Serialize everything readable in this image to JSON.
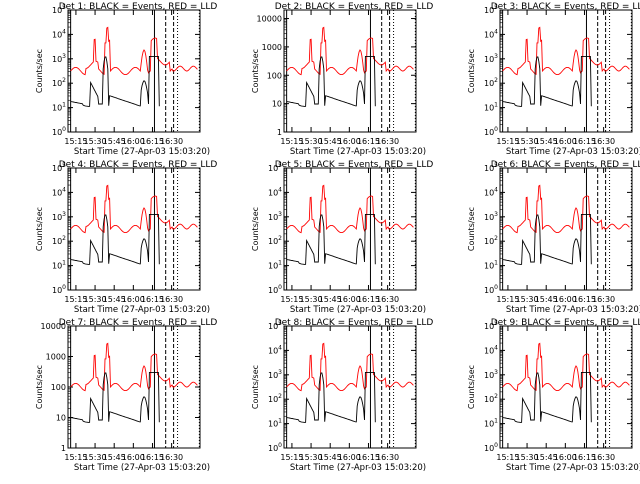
{
  "figure": {
    "xlabel": "Start Time (27-Apr-03 15:03:20)",
    "ylabel": "Counts/sec",
    "x_ticks": [
      "15:15",
      "15:30",
      "15:45",
      "16:00",
      "16:15",
      "16:30"
    ],
    "series_colors": {
      "events": "#000000",
      "lld": "#ff0000"
    }
  },
  "chart_data": [
    {
      "type": "line",
      "title": "Det 1: BLACK = Events, RED = LLD",
      "xlabel": "Start Time (27-Apr-03 15:03:20)",
      "ylabel": "Counts/sec",
      "log_y": true,
      "ylim": [
        1,
        100000
      ],
      "y_ticks": [
        "1",
        "10",
        "100",
        "1000",
        "10000",
        "100000"
      ],
      "y_ticks_style": "exp"
    },
    {
      "type": "line",
      "title": "Det 2: BLACK = Events, RED = LLD",
      "xlabel": "Start Time (27-Apr-03 15:03:20)",
      "ylabel": "Counts/sec",
      "log_y": true,
      "ylim": [
        1,
        20000
      ],
      "y_ticks": [
        "1",
        "10",
        "100",
        "1000",
        "10000"
      ],
      "y_ticks_style": "num"
    },
    {
      "type": "line",
      "title": "Det 3: BLACK = Events, RED = LLD",
      "xlabel": "Start Time (27-Apr-03 15:03:20)",
      "ylabel": "Counts/sec",
      "log_y": true,
      "ylim": [
        1,
        100000
      ],
      "y_ticks": [
        "1",
        "10",
        "100",
        "1000",
        "10000",
        "100000"
      ],
      "y_ticks_style": "exp"
    },
    {
      "type": "line",
      "title": "Det 4: BLACK = Events, RED = LLD",
      "xlabel": "Start Time (27-Apr-03 15:03:20)",
      "ylabel": "Counts/sec",
      "log_y": true,
      "ylim": [
        1,
        100000
      ],
      "y_ticks": [
        "1",
        "10",
        "100",
        "1000",
        "10000",
        "100000"
      ],
      "y_ticks_style": "exp"
    },
    {
      "type": "line",
      "title": "Det 5: BLACK = Events, RED = LLD",
      "xlabel": "Start Time (27-Apr-03 15:03:20)",
      "ylabel": "Counts/sec",
      "log_y": true,
      "ylim": [
        1,
        100000
      ],
      "y_ticks": [
        "1",
        "10",
        "100",
        "1000",
        "10000",
        "100000"
      ],
      "y_ticks_style": "exp"
    },
    {
      "type": "line",
      "title": "Det 6: BLACK = Events, RED = LLD",
      "xlabel": "Start Time (27-Apr-03 15:03:20)",
      "ylabel": "Counts/sec",
      "log_y": true,
      "ylim": [
        1,
        100000
      ],
      "y_ticks": [
        "1",
        "10",
        "100",
        "1000",
        "10000",
        "100000"
      ],
      "y_ticks_style": "exp"
    },
    {
      "type": "line",
      "title": "Det 7: BLACK = Events, RED = LLD",
      "xlabel": "Start Time (27-Apr-03 15:03:20)",
      "ylabel": "Counts/sec",
      "log_y": true,
      "ylim": [
        1,
        10000
      ],
      "y_ticks": [
        "1",
        "10",
        "100",
        "1000",
        "10000"
      ],
      "y_ticks_style": "num"
    },
    {
      "type": "line",
      "title": "Det 8: BLACK = Events, RED = LLD",
      "xlabel": "Start Time (27-Apr-03 15:03:20)",
      "ylabel": "Counts/sec",
      "log_y": true,
      "ylim": [
        1,
        100000
      ],
      "y_ticks": [
        "1",
        "10",
        "100",
        "1000",
        "10000",
        "100000"
      ],
      "y_ticks_style": "exp"
    },
    {
      "type": "line",
      "title": "Det 9: BLACK = Events, RED = LLD",
      "xlabel": "Start Time (27-Apr-03 15:03:20)",
      "ylabel": "Counts/sec",
      "log_y": true,
      "ylim": [
        1,
        100000
      ],
      "y_ticks": [
        "1",
        "10",
        "100",
        "1000",
        "10000",
        "100000"
      ],
      "y_ticks_style": "exp"
    }
  ]
}
